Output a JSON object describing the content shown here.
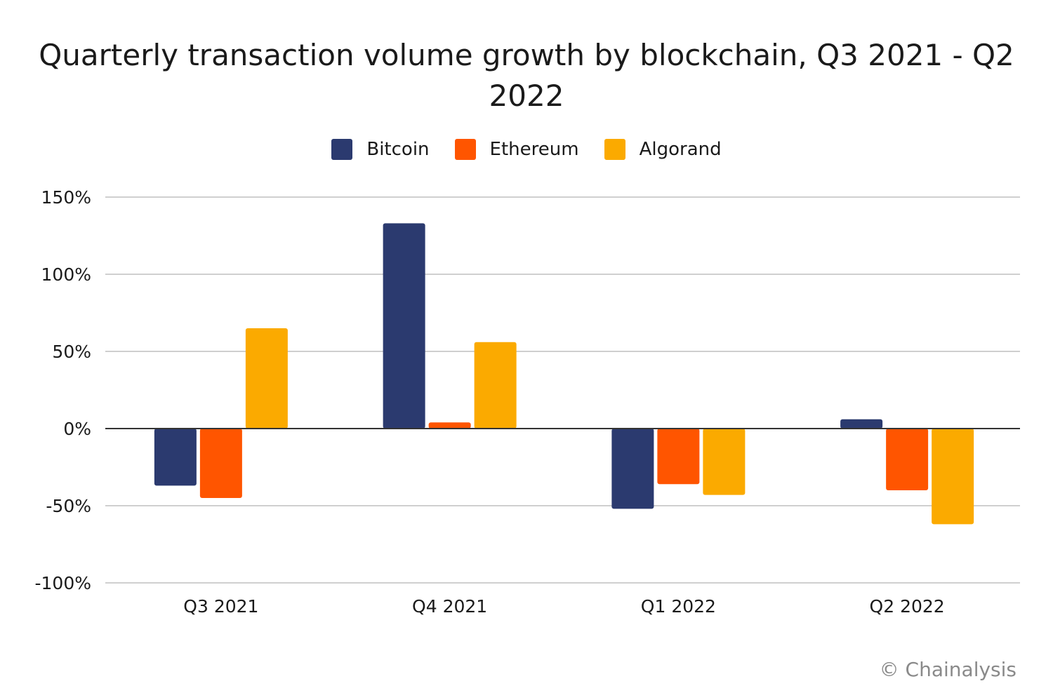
{
  "chart_data": {
    "type": "bar",
    "title": "Quarterly transaction volume growth by blockchain, Q3 2021 - Q2 2022",
    "categories": [
      "Q3 2021",
      "Q4 2021",
      "Q1 2022",
      "Q2 2022"
    ],
    "series": [
      {
        "name": "Bitcoin",
        "color": "#2B3A6F",
        "values": [
          -37,
          133,
          -52,
          6
        ]
      },
      {
        "name": "Ethereum",
        "color": "#FF5500",
        "values": [
          -45,
          4,
          -36,
          -40
        ]
      },
      {
        "name": "Algorand",
        "color": "#FBAA00",
        "values": [
          65,
          56,
          -43,
          -62
        ]
      }
    ],
    "ylim": [
      -100,
      150
    ],
    "yticks": [
      -100,
      -50,
      0,
      50,
      100,
      150
    ],
    "ytick_labels": [
      "-100%",
      "-50%",
      "0%",
      "50%",
      "100%",
      "150%"
    ],
    "xlabel": "",
    "ylabel": "",
    "grid": true,
    "legend_position": "top"
  },
  "credit": "© Chainalysis"
}
